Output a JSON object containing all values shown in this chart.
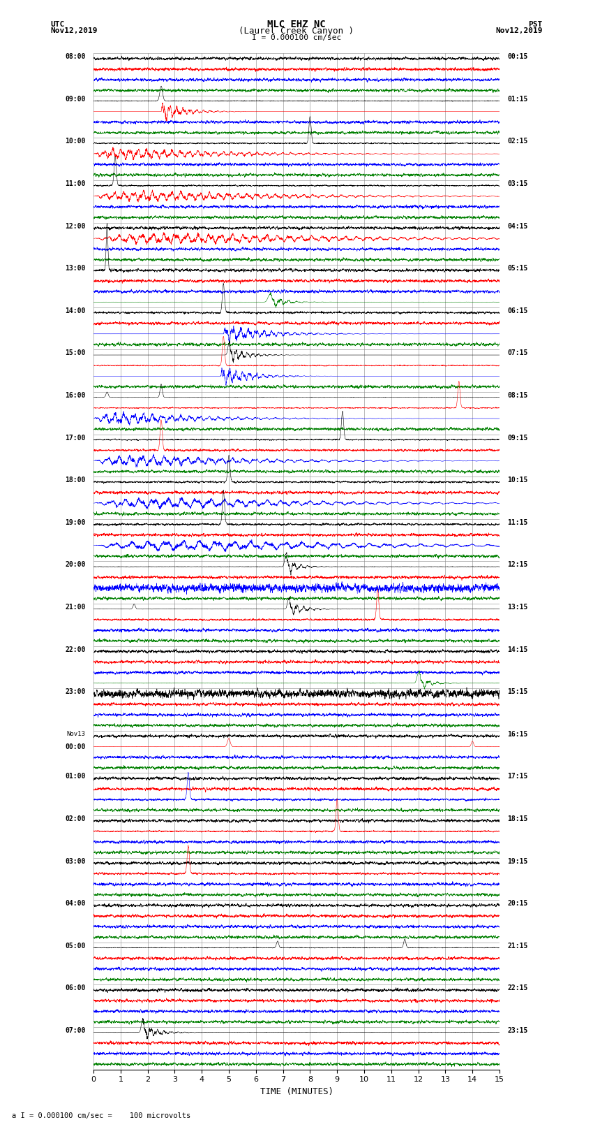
{
  "title_line1": "MLC EHZ NC",
  "title_line2": "(Laurel Creek Canyon )",
  "title_line3": "I = 0.000100 cm/sec",
  "left_label_line1": "UTC",
  "left_label_line2": "Nov12,2019",
  "right_label_line1": "PST",
  "right_label_line2": "Nov12,2019",
  "bottom_note": "a I = 0.000100 cm/sec =    100 microvolts",
  "xlabel": "TIME (MINUTES)",
  "xlim": [
    0,
    15
  ],
  "xticks": [
    0,
    1,
    2,
    3,
    4,
    5,
    6,
    7,
    8,
    9,
    10,
    11,
    12,
    13,
    14,
    15
  ],
  "bg_color": "#ffffff",
  "trace_colors": [
    "black",
    "red",
    "blue",
    "green"
  ],
  "num_rows": 24,
  "utc_labels": [
    "08:00",
    "09:00",
    "10:00",
    "11:00",
    "12:00",
    "13:00",
    "14:00",
    "15:00",
    "16:00",
    "17:00",
    "18:00",
    "19:00",
    "20:00",
    "21:00",
    "22:00",
    "23:00",
    "Nov13\n00:00",
    "01:00",
    "02:00",
    "03:00",
    "04:00",
    "05:00",
    "06:00",
    "07:00"
  ],
  "pst_labels": [
    "00:15",
    "01:15",
    "02:15",
    "03:15",
    "04:15",
    "05:15",
    "06:15",
    "07:15",
    "08:15",
    "09:15",
    "10:15",
    "11:15",
    "12:15",
    "13:15",
    "14:15",
    "15:15",
    "16:15",
    "17:15",
    "18:15",
    "19:15",
    "20:15",
    "21:15",
    "22:15",
    "23:15"
  ],
  "seed": 42,
  "noise_amp": 0.012,
  "grid_color": "#888888",
  "trace_lw": 0.4
}
